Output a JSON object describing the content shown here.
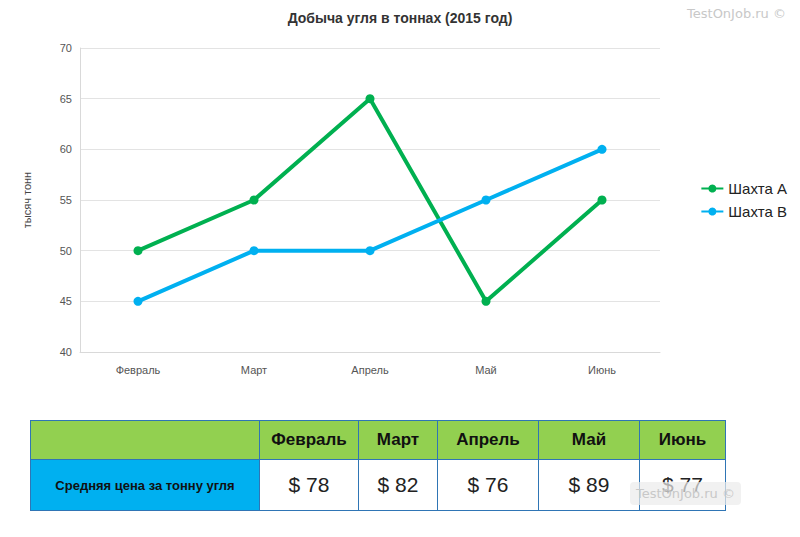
{
  "chart_data": {
    "type": "line",
    "title": "Добыча угля в тоннах (2015 год)",
    "y_label": "тысяч тонн",
    "categories": [
      "Февраль",
      "Март",
      "Апрель",
      "Май",
      "Июнь"
    ],
    "series": [
      {
        "name": "Шахта А",
        "color": "#00b050",
        "marker": "circle",
        "values": [
          50,
          55,
          65,
          45,
          55
        ]
      },
      {
        "name": "Шахта В",
        "color": "#00b0f0",
        "marker": "circle",
        "values": [
          45,
          50,
          50,
          55,
          60
        ]
      }
    ],
    "ylim": [
      40,
      70
    ],
    "yticks": [
      40,
      45,
      50,
      55,
      60,
      65,
      70
    ],
    "grid": true,
    "legend": "right"
  },
  "table": {
    "header": [
      "",
      "Февраль",
      "Март",
      "Апрель",
      "Май",
      "Июнь"
    ],
    "rows": [
      [
        "Средняя цена за тонну угля",
        "$ 78",
        "$ 82",
        "$ 76",
        "$ 89",
        "$ 77"
      ]
    ]
  },
  "watermark": "TestOnJob.ru ©"
}
